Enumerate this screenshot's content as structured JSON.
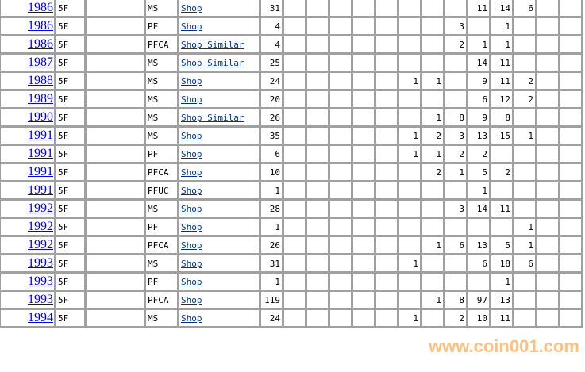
{
  "watermark": "www.coin001.com",
  "rows": [
    {
      "year": "1986",
      "denom": "5F",
      "type": "MS",
      "shop": "Shop",
      "total": "31",
      "grades": [
        "",
        "",
        "",
        "",
        "",
        "",
        "",
        "",
        "11",
        "14",
        "6",
        "",
        ""
      ]
    },
    {
      "year": "1986",
      "denom": "5F",
      "type": "PF",
      "shop": "Shop",
      "total": "4",
      "grades": [
        "",
        "",
        "",
        "",
        "",
        "",
        "",
        "3",
        "",
        "1",
        "",
        "",
        ""
      ]
    },
    {
      "year": "1986",
      "denom": "5F",
      "type": "PFCA",
      "shop": "Shop Similar",
      "total": "4",
      "grades": [
        "",
        "",
        "",
        "",
        "",
        "",
        "",
        "2",
        "1",
        "1",
        "",
        "",
        ""
      ]
    },
    {
      "year": "1987",
      "denom": "5F",
      "type": "MS",
      "shop": "Shop Similar",
      "total": "25",
      "grades": [
        "",
        "",
        "",
        "",
        "",
        "",
        "",
        "",
        "14",
        "11",
        "",
        "",
        ""
      ]
    },
    {
      "year": "1988",
      "denom": "5F",
      "type": "MS",
      "shop": "Shop",
      "total": "24",
      "grades": [
        "",
        "",
        "",
        "",
        "",
        "1",
        "1",
        "",
        "9",
        "11",
        "2",
        "",
        ""
      ]
    },
    {
      "year": "1989",
      "denom": "5F",
      "type": "MS",
      "shop": "Shop",
      "total": "20",
      "grades": [
        "",
        "",
        "",
        "",
        "",
        "",
        "",
        "",
        "6",
        "12",
        "2",
        "",
        ""
      ]
    },
    {
      "year": "1990",
      "denom": "5F",
      "type": "MS",
      "shop": "Shop Similar",
      "total": "26",
      "grades": [
        "",
        "",
        "",
        "",
        "",
        "",
        "1",
        "8",
        "9",
        "8",
        "",
        "",
        ""
      ]
    },
    {
      "year": "1991",
      "denom": "5F",
      "type": "MS",
      "shop": "Shop",
      "total": "35",
      "grades": [
        "",
        "",
        "",
        "",
        "",
        "1",
        "2",
        "3",
        "13",
        "15",
        "1",
        "",
        ""
      ]
    },
    {
      "year": "1991",
      "denom": "5F",
      "type": "PF",
      "shop": "Shop",
      "total": "6",
      "grades": [
        "",
        "",
        "",
        "",
        "",
        "1",
        "1",
        "2",
        "2",
        "",
        "",
        "",
        ""
      ]
    },
    {
      "year": "1991",
      "denom": "5F",
      "type": "PFCA",
      "shop": "Shop",
      "total": "10",
      "grades": [
        "",
        "",
        "",
        "",
        "",
        "",
        "2",
        "1",
        "5",
        "2",
        "",
        "",
        ""
      ]
    },
    {
      "year": "1991",
      "denom": "5F",
      "type": "PFUC",
      "shop": "Shop",
      "total": "1",
      "grades": [
        "",
        "",
        "",
        "",
        "",
        "",
        "",
        "",
        "1",
        "",
        "",
        "",
        ""
      ]
    },
    {
      "year": "1992",
      "denom": "5F",
      "type": "MS",
      "shop": "Shop",
      "total": "28",
      "grades": [
        "",
        "",
        "",
        "",
        "",
        "",
        "",
        "3",
        "14",
        "11",
        "",
        "",
        ""
      ]
    },
    {
      "year": "1992",
      "denom": "5F",
      "type": "PF",
      "shop": "Shop",
      "total": "1",
      "grades": [
        "",
        "",
        "",
        "",
        "",
        "",
        "",
        "",
        "",
        "",
        "1",
        "",
        ""
      ]
    },
    {
      "year": "1992",
      "denom": "5F",
      "type": "PFCA",
      "shop": "Shop",
      "total": "26",
      "grades": [
        "",
        "",
        "",
        "",
        "",
        "",
        "1",
        "6",
        "13",
        "5",
        "1",
        "",
        ""
      ]
    },
    {
      "year": "1993",
      "denom": "5F",
      "type": "MS",
      "shop": "Shop",
      "total": "31",
      "grades": [
        "",
        "",
        "",
        "",
        "",
        "1",
        "",
        "",
        "6",
        "18",
        "6",
        "",
        ""
      ]
    },
    {
      "year": "1993",
      "denom": "5F",
      "type": "PF",
      "shop": "Shop",
      "total": "1",
      "grades": [
        "",
        "",
        "",
        "",
        "",
        "",
        "",
        "",
        "",
        "1",
        "",
        "",
        ""
      ]
    },
    {
      "year": "1993",
      "denom": "5F",
      "type": "PFCA",
      "shop": "Shop",
      "total": "119",
      "grades": [
        "",
        "",
        "",
        "",
        "",
        "",
        "1",
        "8",
        "97",
        "13",
        "",
        "",
        ""
      ]
    },
    {
      "year": "1994",
      "denom": "5F",
      "type": "MS",
      "shop": "Shop",
      "total": "24",
      "grades": [
        "",
        "",
        "",
        "",
        "",
        "1",
        "",
        "2",
        "10",
        "11",
        "",
        "",
        ""
      ]
    }
  ]
}
